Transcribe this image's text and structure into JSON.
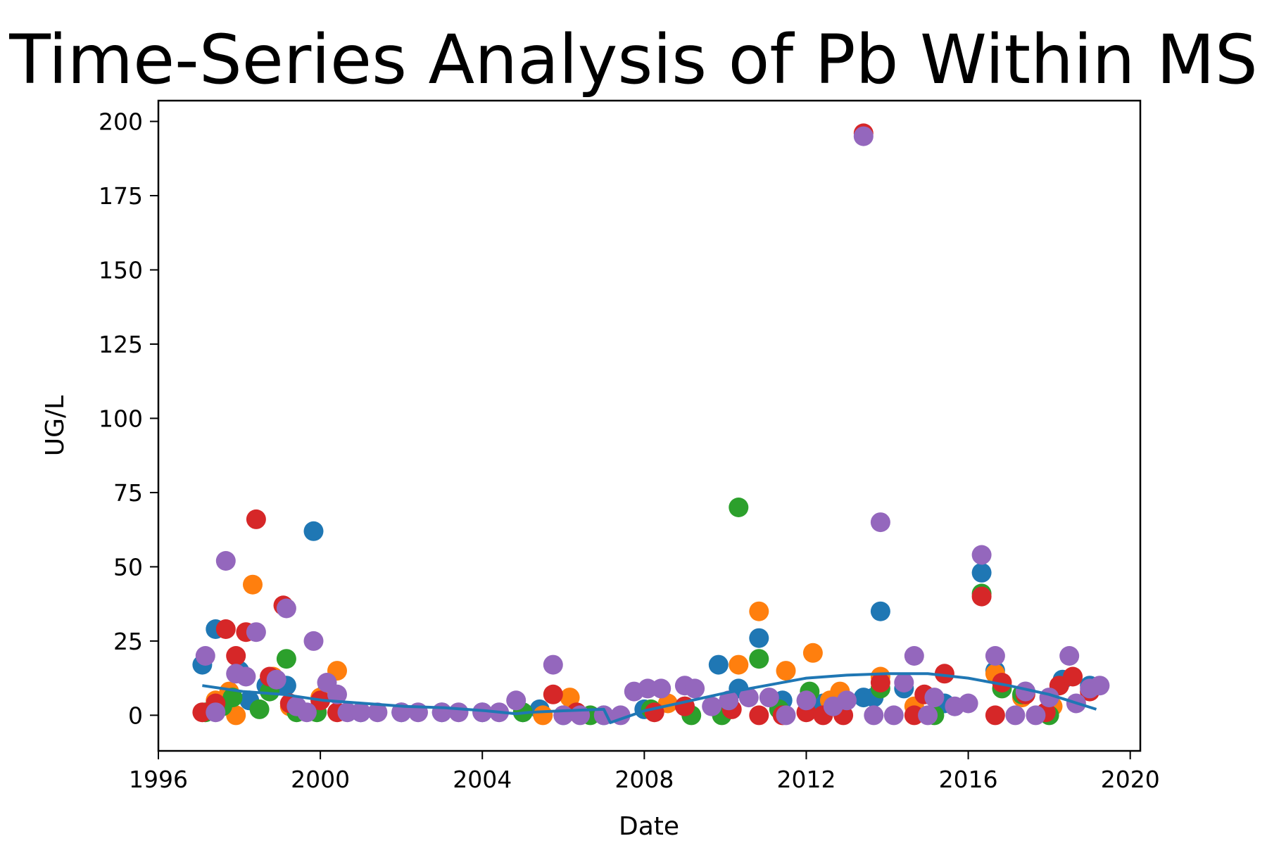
{
  "chart_data": {
    "type": "scatter",
    "title": "Time-Series Analysis of Pb Within MS",
    "xlabel": "Date",
    "ylabel": "UG/L",
    "xlim": [
      "1996-01-01",
      "2020-04-01"
    ],
    "ylim": [
      -12,
      207
    ],
    "x_ticks": [
      "1996",
      "2000",
      "2004",
      "2008",
      "2012",
      "2016",
      "2020"
    ],
    "y_ticks": [
      0,
      25,
      50,
      75,
      100,
      125,
      150,
      175,
      200
    ],
    "grid": false,
    "legend": "none",
    "series": [
      {
        "color": "#1f77b4",
        "points": [
          [
            "1997-02-01",
            17
          ],
          [
            "1997-06-01",
            29
          ],
          [
            "1998-01-01",
            15
          ],
          [
            "1998-04-01",
            5
          ],
          [
            "1998-09-01",
            10
          ],
          [
            "1999-03-01",
            10
          ],
          [
            "1999-11-01",
            62
          ],
          [
            "2000-03-01",
            8
          ],
          [
            "2001-01-01",
            1
          ],
          [
            "2002-01-01",
            1
          ],
          [
            "2003-01-01",
            1
          ],
          [
            "2004-01-01",
            1
          ],
          [
            "2005-01-01",
            1
          ],
          [
            "2005-06-01",
            2
          ],
          [
            "2006-01-01",
            0
          ],
          [
            "2007-01-01",
            0
          ],
          [
            "2008-01-01",
            2
          ],
          [
            "2009-01-01",
            3
          ],
          [
            "2009-11-01",
            17
          ],
          [
            "2010-05-01",
            9
          ],
          [
            "2010-11-01",
            26
          ],
          [
            "2011-06-01",
            5
          ],
          [
            "2012-06-01",
            4
          ],
          [
            "2013-06-01",
            6
          ],
          [
            "2013-09-01",
            6
          ],
          [
            "2013-11-01",
            35
          ],
          [
            "2014-06-01",
            9
          ],
          [
            "2015-06-01",
            4
          ],
          [
            "2016-05-01",
            48
          ],
          [
            "2016-09-01",
            15
          ],
          [
            "2017-06-01",
            8
          ],
          [
            "2018-05-01",
            12
          ],
          [
            "2019-01-01",
            10
          ]
        ]
      },
      {
        "color": "#ff7f0e",
        "points": [
          [
            "1997-06-01",
            5
          ],
          [
            "1997-10-01",
            8
          ],
          [
            "1997-12-01",
            0
          ],
          [
            "1998-05-01",
            44
          ],
          [
            "1998-11-01",
            13
          ],
          [
            "1999-04-01",
            3
          ],
          [
            "2000-01-01",
            6
          ],
          [
            "2000-06-01",
            15
          ],
          [
            "2005-07-01",
            0
          ],
          [
            "2006-03-01",
            6
          ],
          [
            "2008-08-01",
            4
          ],
          [
            "2010-05-01",
            17
          ],
          [
            "2010-11-01",
            35
          ],
          [
            "2011-07-01",
            15
          ],
          [
            "2012-03-01",
            21
          ],
          [
            "2012-08-01",
            5
          ],
          [
            "2012-11-01",
            8
          ],
          [
            "2013-11-01",
            13
          ],
          [
            "2014-09-01",
            3
          ],
          [
            "2016-09-01",
            14
          ],
          [
            "2017-05-01",
            6
          ],
          [
            "2018-02-01",
            3
          ]
        ]
      },
      {
        "color": "#2ca02c",
        "points": [
          [
            "1997-03-01",
            1
          ],
          [
            "1997-08-01",
            3
          ],
          [
            "1997-11-01",
            6
          ],
          [
            "1998-07-01",
            2
          ],
          [
            "1998-10-01",
            8
          ],
          [
            "1999-03-01",
            19
          ],
          [
            "1999-06-01",
            1
          ],
          [
            "1999-12-01",
            1
          ],
          [
            "2005-01-01",
            1
          ],
          [
            "2006-09-01",
            0
          ],
          [
            "2008-03-01",
            2
          ],
          [
            "2009-03-01",
            0
          ],
          [
            "2009-12-01",
            0
          ],
          [
            "2010-05-01",
            70
          ],
          [
            "2010-11-01",
            19
          ],
          [
            "2011-05-01",
            2
          ],
          [
            "2012-02-01",
            8
          ],
          [
            "2013-11-01",
            9
          ],
          [
            "2015-03-01",
            0
          ],
          [
            "2016-05-01",
            41
          ],
          [
            "2016-11-01",
            9
          ],
          [
            "2017-05-01",
            7
          ],
          [
            "2018-01-01",
            0
          ]
        ]
      },
      {
        "color": "#d62728",
        "points": [
          [
            "1997-02-01",
            1
          ],
          [
            "1997-06-01",
            4
          ],
          [
            "1997-09-01",
            29
          ],
          [
            "1997-12-01",
            20
          ],
          [
            "1998-03-01",
            28
          ],
          [
            "1998-06-01",
            66
          ],
          [
            "1998-10-01",
            13
          ],
          [
            "1999-02-01",
            37
          ],
          [
            "1999-04-01",
            4
          ],
          [
            "2000-01-01",
            5
          ],
          [
            "2000-06-01",
            1
          ],
          [
            "2005-10-01",
            7
          ],
          [
            "2006-05-01",
            1
          ],
          [
            "2008-04-01",
            1
          ],
          [
            "2009-01-01",
            3
          ],
          [
            "2010-03-01",
            2
          ],
          [
            "2010-11-01",
            0
          ],
          [
            "2011-06-01",
            0
          ],
          [
            "2012-01-01",
            1
          ],
          [
            "2012-06-01",
            0
          ],
          [
            "2012-12-01",
            0
          ],
          [
            "2013-06-01",
            196
          ],
          [
            "2013-11-01",
            11
          ],
          [
            "2014-09-01",
            0
          ],
          [
            "2014-12-01",
            7
          ],
          [
            "2015-06-01",
            14
          ],
          [
            "2016-05-01",
            40
          ],
          [
            "2016-09-01",
            0
          ],
          [
            "2016-11-01",
            11
          ],
          [
            "2017-06-01",
            7
          ],
          [
            "2017-12-01",
            1
          ],
          [
            "2018-04-01",
            10
          ],
          [
            "2018-08-01",
            13
          ],
          [
            "2019-01-01",
            8
          ]
        ]
      },
      {
        "color": "#9467bd",
        "points": [
          [
            "1997-03-01",
            20
          ],
          [
            "1997-06-01",
            1
          ],
          [
            "1997-09-01",
            52
          ],
          [
            "1997-12-01",
            14
          ],
          [
            "1998-03-01",
            13
          ],
          [
            "1998-06-01",
            28
          ],
          [
            "1998-12-01",
            12
          ],
          [
            "1999-03-01",
            36
          ],
          [
            "1999-06-01",
            3
          ],
          [
            "1999-09-01",
            1
          ],
          [
            "1999-11-01",
            25
          ],
          [
            "2000-03-01",
            11
          ],
          [
            "2000-06-01",
            7
          ],
          [
            "2000-09-01",
            1
          ],
          [
            "2001-01-01",
            1
          ],
          [
            "2001-06-01",
            1
          ],
          [
            "2002-01-01",
            1
          ],
          [
            "2002-06-01",
            1
          ],
          [
            "2003-01-01",
            1
          ],
          [
            "2003-06-01",
            1
          ],
          [
            "2004-01-01",
            1
          ],
          [
            "2004-06-01",
            1
          ],
          [
            "2004-11-01",
            5
          ],
          [
            "2005-10-01",
            17
          ],
          [
            "2006-01-01",
            0
          ],
          [
            "2006-06-01",
            0
          ],
          [
            "2007-01-01",
            0
          ],
          [
            "2007-06-01",
            0
          ],
          [
            "2007-10-01",
            8
          ],
          [
            "2008-02-01",
            9
          ],
          [
            "2008-06-01",
            9
          ],
          [
            "2009-01-01",
            10
          ],
          [
            "2009-04-01",
            9
          ],
          [
            "2009-09-01",
            3
          ],
          [
            "2010-02-01",
            5
          ],
          [
            "2010-08-01",
            6
          ],
          [
            "2011-02-01",
            6
          ],
          [
            "2011-07-01",
            0
          ],
          [
            "2012-01-01",
            5
          ],
          [
            "2012-09-01",
            3
          ],
          [
            "2013-01-01",
            5
          ],
          [
            "2013-06-01",
            195
          ],
          [
            "2013-09-01",
            0
          ],
          [
            "2013-11-01",
            65
          ],
          [
            "2014-03-01",
            0
          ],
          [
            "2014-06-01",
            11
          ],
          [
            "2014-09-01",
            20
          ],
          [
            "2015-01-01",
            0
          ],
          [
            "2015-03-01",
            6
          ],
          [
            "2015-09-01",
            3
          ],
          [
            "2016-01-01",
            4
          ],
          [
            "2016-05-01",
            54
          ],
          [
            "2016-09-01",
            20
          ],
          [
            "2017-03-01",
            0
          ],
          [
            "2017-06-01",
            8
          ],
          [
            "2017-09-01",
            0
          ],
          [
            "2018-01-01",
            6
          ],
          [
            "2018-07-01",
            20
          ],
          [
            "2018-09-01",
            4
          ],
          [
            "2019-01-01",
            9
          ],
          [
            "2019-04-01",
            10
          ]
        ]
      }
    ],
    "trend_line": {
      "color": "#1f77b4",
      "points": [
        [
          "1997-02-01",
          10
        ],
        [
          "1998-02-01",
          8
        ],
        [
          "1999-02-01",
          7
        ],
        [
          "2000-02-01",
          5
        ],
        [
          "2001-02-01",
          4
        ],
        [
          "2002-02-01",
          3
        ],
        [
          "2003-02-01",
          2.5
        ],
        [
          "2004-02-01",
          1.5
        ],
        [
          "2004-11-01",
          0.5
        ],
        [
          "2005-03-01",
          1
        ],
        [
          "2006-01-01",
          1.5
        ],
        [
          "2007-01-01",
          2
        ],
        [
          "2007-03-01",
          -2.5
        ],
        [
          "2008-01-01",
          1.5
        ],
        [
          "2009-01-01",
          4.5
        ],
        [
          "2010-01-01",
          7.5
        ],
        [
          "2011-01-01",
          10
        ],
        [
          "2012-01-01",
          12.5
        ],
        [
          "2013-01-01",
          13.5
        ],
        [
          "2014-01-01",
          14
        ],
        [
          "2015-01-01",
          14
        ],
        [
          "2016-01-01",
          12.5
        ],
        [
          "2017-01-01",
          10
        ],
        [
          "2018-01-01",
          7
        ],
        [
          "2019-03-01",
          2
        ]
      ]
    }
  }
}
